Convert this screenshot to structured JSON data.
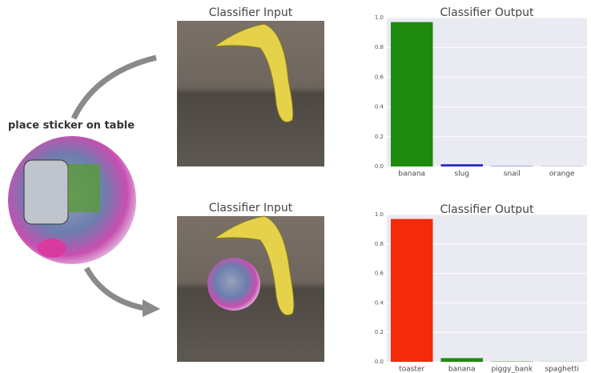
{
  "caption": "place sticker on table",
  "input_titles": [
    "Classifier Input",
    "Classifier Input"
  ],
  "chart_data": [
    {
      "type": "bar",
      "title": "Classifier Output",
      "categories": [
        "banana",
        "slug",
        "snail",
        "orange"
      ],
      "values": [
        0.97,
        0.015,
        0.002,
        0.001
      ],
      "colors": [
        "#1e8a0e",
        "#2a2ac8",
        "#2a2ac8",
        "#2a2ac8"
      ],
      "ylim": [
        0,
        1
      ],
      "yticks": [
        {
          "value": 0,
          "label": "0.0"
        },
        0.2,
        0.4,
        0.6,
        0.8,
        {
          "value": 1,
          "label": "1.0"
        }
      ]
    },
    {
      "type": "bar",
      "title": "Classifier Output",
      "categories": [
        "toaster",
        "banana",
        "piggy_bank",
        "spaghetti"
      ],
      "values": [
        0.97,
        0.025,
        0.002,
        0.001
      ],
      "colors": [
        "#f52a0a",
        "#1e8a0e",
        "#1e8a0e",
        "#1e8a0e"
      ],
      "ylim": [
        0,
        1
      ],
      "yticks": [
        {
          "value": 0,
          "label": "0.0"
        },
        0.2,
        0.4,
        0.6,
        0.8,
        {
          "value": 1,
          "label": "1.0"
        }
      ]
    }
  ]
}
